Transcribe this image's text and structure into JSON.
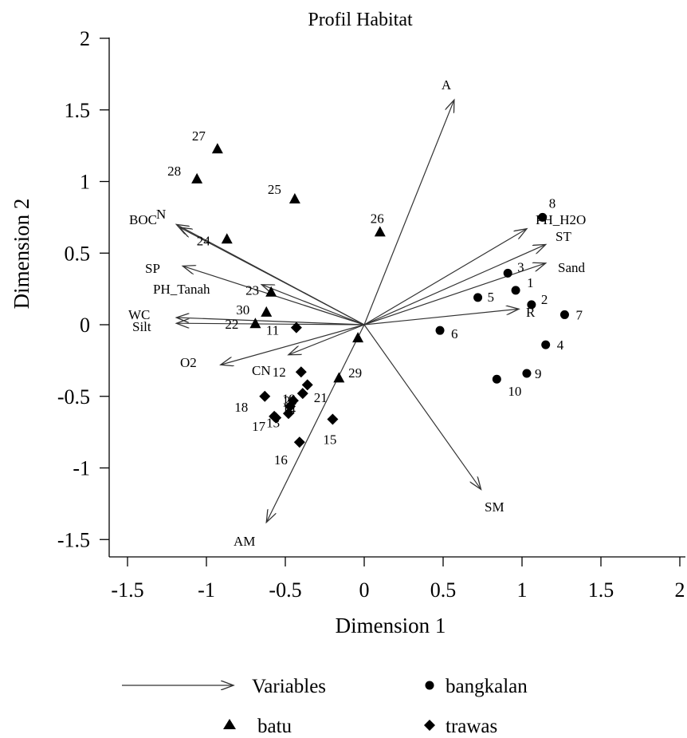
{
  "chart_data": {
    "type": "scatter",
    "title": "Profil Habitat",
    "xlabel": "Dimension 1",
    "ylabel": "Dimension 2",
    "xlim": [
      -1.6,
      2.05
    ],
    "ylim": [
      -1.62,
      2.12
    ],
    "xticks": [
      -1.5,
      -1,
      -0.5,
      0,
      0.5,
      1,
      1.5,
      2
    ],
    "xtick_labels": [
      "-1.5",
      "-1",
      "-0.5",
      "0",
      "0.5",
      "1",
      "1.5",
      "2"
    ],
    "yticks": [
      -1.5,
      -1,
      -0.5,
      0,
      0.5,
      1,
      1.5,
      2
    ],
    "ytick_labels": [
      "-1.5",
      "-1",
      "-0.5",
      "0",
      "0.5",
      "1",
      "1.5",
      "2"
    ],
    "grid": false,
    "legend_position": "bottom",
    "legend": [
      {
        "label": "Variables",
        "marker": "arrow"
      },
      {
        "label": "bangkalan",
        "marker": "circle"
      },
      {
        "label": "batu",
        "marker": "triangle"
      },
      {
        "label": "trawas",
        "marker": "diamond"
      }
    ],
    "series": [
      {
        "name": "bangkalan",
        "marker": "circle",
        "points": [
          {
            "label": "1",
            "x": 0.96,
            "y": 0.24
          },
          {
            "label": "2",
            "x": 1.06,
            "y": 0.14
          },
          {
            "label": "3",
            "x": 0.91,
            "y": 0.36
          },
          {
            "label": "4",
            "x": 1.15,
            "y": -0.14
          },
          {
            "label": "5",
            "x": 0.72,
            "y": 0.19
          },
          {
            "label": "6",
            "x": 0.48,
            "y": -0.04
          },
          {
            "label": "7",
            "x": 1.27,
            "y": 0.07
          },
          {
            "label": "8",
            "x": 1.13,
            "y": 0.75
          },
          {
            "label": "9",
            "x": 1.03,
            "y": -0.34
          },
          {
            "label": "10",
            "x": 0.84,
            "y": -0.38
          }
        ]
      },
      {
        "name": "batu",
        "marker": "triangle",
        "points": [
          {
            "label": "22",
            "x": -0.69,
            "y": 0.01
          },
          {
            "label": "23",
            "x": -0.59,
            "y": 0.23
          },
          {
            "label": "24",
            "x": -0.87,
            "y": 0.6
          },
          {
            "label": "25",
            "x": -0.44,
            "y": 0.88
          },
          {
            "label": "26",
            "x": 0.1,
            "y": 0.65
          },
          {
            "label": "27",
            "x": -0.93,
            "y": 1.23
          },
          {
            "label": "28",
            "x": -1.06,
            "y": 1.02
          },
          {
            "label": "29",
            "x": -0.04,
            "y": -0.09
          },
          {
            "label": "30",
            "x": -0.62,
            "y": 0.09
          },
          {
            "label": "",
            "x": -0.16,
            "y": -0.37
          }
        ]
      },
      {
        "name": "trawas",
        "marker": "diamond",
        "points": [
          {
            "label": "11",
            "x": -0.43,
            "y": -0.02
          },
          {
            "label": "12",
            "x": -0.4,
            "y": -0.33
          },
          {
            "label": "13",
            "x": -0.56,
            "y": -0.65
          },
          {
            "label": "14",
            "x": -0.48,
            "y": -0.62
          },
          {
            "label": "15",
            "x": -0.2,
            "y": -0.66
          },
          {
            "label": "16",
            "x": -0.41,
            "y": -0.82
          },
          {
            "label": "17",
            "x": -0.57,
            "y": -0.64
          },
          {
            "label": "18",
            "x": -0.63,
            "y": -0.5
          },
          {
            "label": "19",
            "x": -0.47,
            "y": -0.57
          },
          {
            "label": "20",
            "x": -0.45,
            "y": -0.53
          },
          {
            "label": "21",
            "x": -0.39,
            "y": -0.48
          },
          {
            "label": "",
            "x": -0.36,
            "y": -0.42
          }
        ]
      }
    ],
    "variables": [
      {
        "label": "A",
        "x": 0.57,
        "y": 1.57
      },
      {
        "label": "PH_H2O",
        "x": 1.03,
        "y": 0.67
      },
      {
        "label": "ST",
        "x": 1.15,
        "y": 0.56
      },
      {
        "label": "Sand",
        "x": 1.15,
        "y": 0.43
      },
      {
        "label": "R",
        "x": 0.98,
        "y": 0.11
      },
      {
        "label": "SM",
        "x": 0.74,
        "y": -1.15
      },
      {
        "label": "AM",
        "x": -0.62,
        "y": -1.38
      },
      {
        "label": "CN",
        "x": -0.48,
        "y": -0.21
      },
      {
        "label": "O2",
        "x": -0.91,
        "y": -0.28
      },
      {
        "label": "Silt",
        "x": -1.19,
        "y": 0.01
      },
      {
        "label": "WC",
        "x": -1.19,
        "y": 0.05
      },
      {
        "label": "PH_Tanah",
        "x": -0.65,
        "y": 0.28
      },
      {
        "label": "SP",
        "x": -1.15,
        "y": 0.41
      },
      {
        "label": "N",
        "x": -1.19,
        "y": 0.7
      },
      {
        "label": "BOC",
        "x": -1.17,
        "y": 0.68
      }
    ]
  }
}
